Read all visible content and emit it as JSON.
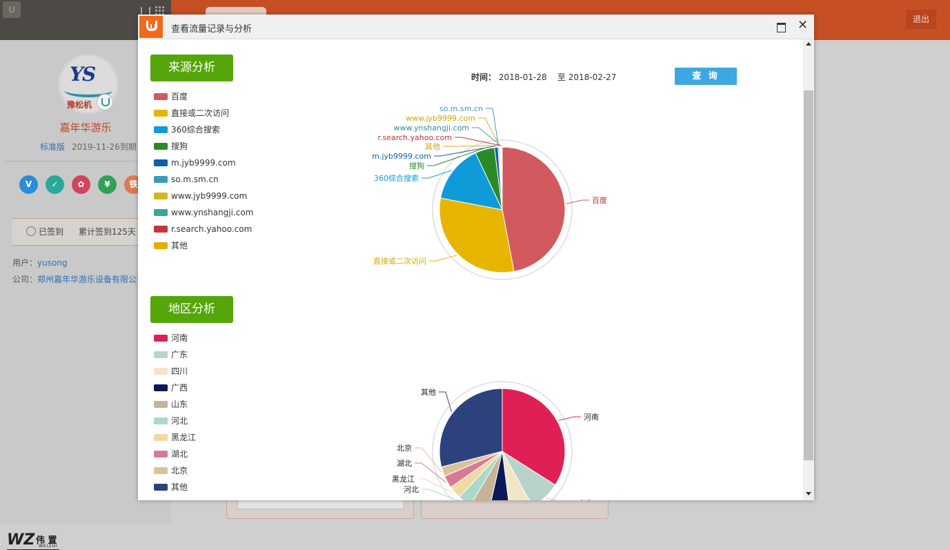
{
  "app": {
    "logout_label": "退出",
    "company_logo_text": "YS",
    "company_logo_sub": "豫松机",
    "company_name": "嘉年华游乐",
    "edition": "标准版",
    "expire": "2019-11-26到期",
    "badges": [
      {
        "label": "V",
        "color": "#2b8dd6"
      },
      {
        "label": "✓",
        "color": "#2ba89a"
      },
      {
        "label": "✿",
        "color": "#d2445c"
      },
      {
        "label": "¥",
        "color": "#33a05a"
      },
      {
        "label": "铁",
        "color": "#e07850"
      }
    ],
    "sign_status": "已签到",
    "sign_total": "累计签到125天",
    "user_label": "用户：",
    "user_value": "yusong",
    "company_label": "公司：",
    "company_value": "郑州嘉年华游乐设备有限公司",
    "brand_main": "WZ",
    "brand_cn": "伟 置",
    "brand_sub": "WEIZHI"
  },
  "modal": {
    "title": "查看流量记录与分析",
    "time_label": "时间：",
    "date_from": "2018-01-28",
    "date_sep": "至",
    "date_to": "2018-02-27",
    "query_label": "查 询",
    "source_title": "来源分析",
    "region_title": "地区分析"
  },
  "chart_data": [
    {
      "type": "pie",
      "title": "来源分析",
      "legend_position": "left",
      "categories": [
        "百度",
        "直接或二次访问",
        "360综合搜索",
        "搜狗",
        "m.jyb9999.com",
        "so.m.sm.cn",
        "www.jyb9999.com",
        "www.ynshangji.com",
        "r.search.yahoo.com",
        "其他"
      ],
      "values": [
        47.0,
        31.0,
        15.0,
        5.0,
        0.9,
        0.3,
        0.25,
        0.2,
        0.2,
        0.15
      ],
      "colors": [
        "#d25a5f",
        "#e7b500",
        "#0e9bd8",
        "#2a8a27",
        "#0f5ea9",
        "#3c9bb0",
        "#d4b526",
        "#3aa59a",
        "#c0383f",
        "#e5ad00"
      ],
      "label_colors": [
        "#b3333a",
        "#d5a800",
        "#0e9bd8",
        "#2a8a27",
        "#0f5ea9",
        "#3c9bb0",
        "#cfa700",
        "#2f8c95",
        "#b5333a",
        "#dfa300"
      ]
    },
    {
      "type": "pie",
      "title": "地区分析",
      "legend_position": "left",
      "categories": [
        "河南",
        "广东",
        "四川",
        "广西",
        "山东",
        "河北",
        "黑龙江",
        "湖北",
        "北京",
        "其他"
      ],
      "values": [
        34.0,
        8.0,
        6.0,
        5.5,
        5.0,
        3.5,
        3.3,
        3.2,
        2.5,
        29.0
      ],
      "colors": [
        "#e01f55",
        "#b9d3cb",
        "#f2e5c8",
        "#0c1955",
        "#c5b497",
        "#a9d9c7",
        "#f1d9a3",
        "#d87a93",
        "#d9c39b",
        "#2d427c"
      ],
      "label_colors": [
        "#222222",
        "#222222",
        "#222222",
        "#222222",
        "#222222",
        "#222222",
        "#222222",
        "#222222",
        "#222222",
        "#222222"
      ]
    }
  ]
}
